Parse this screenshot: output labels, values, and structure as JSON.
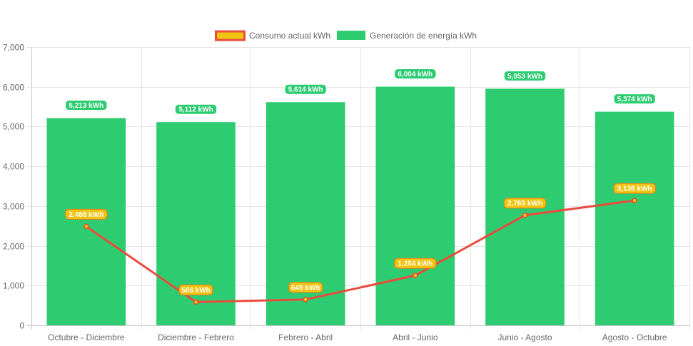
{
  "chart_data": {
    "type": "bar",
    "title": "",
    "xlabel": "",
    "ylabel": "",
    "ylim": [
      0,
      7000
    ],
    "yticks": [
      0,
      1000,
      2000,
      3000,
      4000,
      5000,
      6000,
      7000
    ],
    "ytick_labels": [
      "0",
      "1,000",
      "2,000",
      "3,000",
      "4,000",
      "5,000",
      "6,000",
      "7,000"
    ],
    "grid": true,
    "legend_position": "top-center",
    "categories": [
      "Octubre - Diciembre",
      "Diciembre - Febrero",
      "Febrero - Abril",
      "Abril - Junio",
      "Junio - Agosto",
      "Agosto - Octubre"
    ],
    "series": [
      {
        "name": "Consumo actual kWh",
        "type": "line",
        "color": "#e74c3c",
        "fill_color": "#f1c40f",
        "values": [
          2488,
          586,
          649,
          1254,
          2769,
          3138
        ],
        "labels": [
          "2,488 kWh",
          "586 kWh",
          "649 kWh",
          "1,254 kWh",
          "2,769 kWh",
          "3,138 kWh"
        ]
      },
      {
        "name": "Generación de energía kWh",
        "type": "bar",
        "color": "#2ecc71",
        "values": [
          5213,
          5112,
          5614,
          6004,
          5953,
          5374
        ],
        "labels": [
          "5,213 kWh",
          "5,112 kWh",
          "5,614 kWh",
          "6,004 kWh",
          "5,953 kWh",
          "5,374 kWh"
        ]
      }
    ]
  }
}
